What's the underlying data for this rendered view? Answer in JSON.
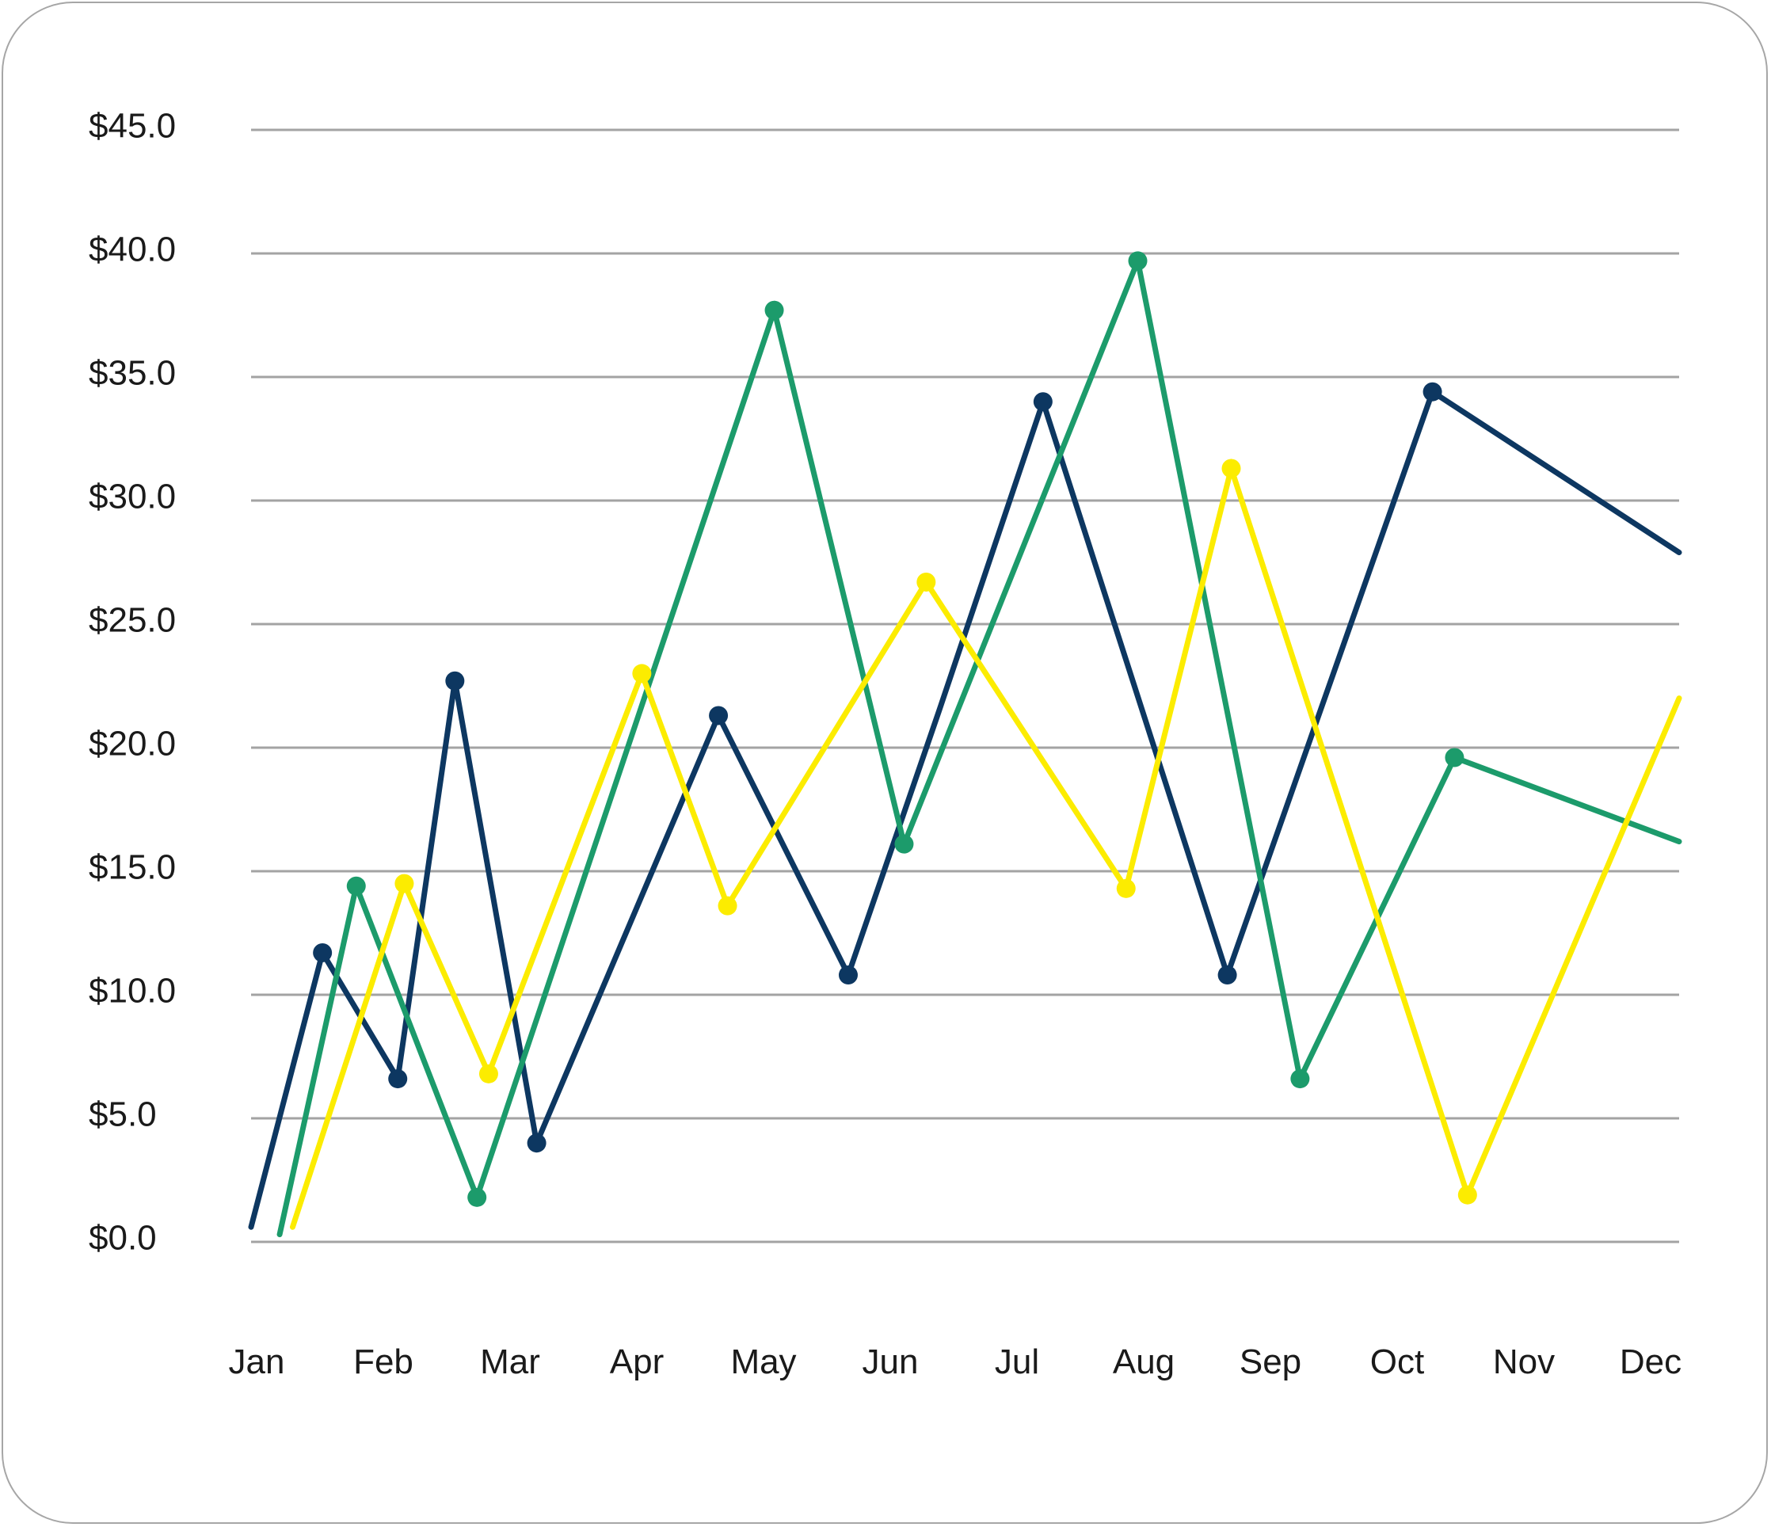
{
  "chart_data": {
    "type": "line",
    "title": "",
    "xlabel": "",
    "ylabel": "",
    "ylim": [
      0,
      45
    ],
    "grid": "horizontal",
    "legend": "none",
    "x_tick_labels": [
      "Jan",
      "Feb",
      "Mar",
      "Apr",
      "May",
      "Jun",
      "Jul",
      "Aug",
      "Sep",
      "Oct",
      "Nov",
      "Dec"
    ],
    "y_tick_labels": [
      "$0.0",
      "$5.0",
      "$10.0",
      "$15.0",
      "$20.0",
      "$25.0",
      "$30.0",
      "$35.0",
      "$40.0",
      "$45.0"
    ],
    "y_ticks": [
      0,
      5,
      10,
      15,
      20,
      25,
      30,
      35,
      40,
      45
    ],
    "x_range": [
      0,
      11
    ],
    "series": [
      {
        "color": "#0d3761",
        "points": [
          {
            "x": 0.0,
            "y": 0.6,
            "marker": false
          },
          {
            "x": 0.55,
            "y": 11.7,
            "marker": true
          },
          {
            "x": 1.13,
            "y": 6.6,
            "marker": true
          },
          {
            "x": 1.57,
            "y": 22.7,
            "marker": true
          },
          {
            "x": 2.2,
            "y": 4.0,
            "marker": true
          },
          {
            "x": 3.6,
            "y": 21.3,
            "marker": true
          },
          {
            "x": 4.6,
            "y": 10.8,
            "marker": true
          },
          {
            "x": 5.3,
            "y": 21.5,
            "marker": false
          },
          {
            "x": 6.1,
            "y": 34.0,
            "marker": true
          },
          {
            "x": 7.52,
            "y": 10.8,
            "marker": true
          },
          {
            "x": 9.1,
            "y": 34.4,
            "marker": true
          },
          {
            "x": 11.0,
            "y": 27.9,
            "marker": false
          }
        ]
      },
      {
        "color": "#1c9b6b",
        "points": [
          {
            "x": 0.22,
            "y": 0.3,
            "marker": false
          },
          {
            "x": 0.81,
            "y": 14.4,
            "marker": true
          },
          {
            "x": 1.74,
            "y": 1.8,
            "marker": true
          },
          {
            "x": 4.03,
            "y": 37.7,
            "marker": true
          },
          {
            "x": 5.03,
            "y": 16.1,
            "marker": true
          },
          {
            "x": 6.83,
            "y": 39.7,
            "marker": true
          },
          {
            "x": 8.08,
            "y": 6.6,
            "marker": true
          },
          {
            "x": 9.27,
            "y": 19.6,
            "marker": true
          },
          {
            "x": 11.0,
            "y": 16.2,
            "marker": false
          }
        ]
      },
      {
        "color": "#fcec00",
        "points": [
          {
            "x": 0.32,
            "y": 0.6,
            "marker": false
          },
          {
            "x": 1.18,
            "y": 14.5,
            "marker": true
          },
          {
            "x": 1.83,
            "y": 6.8,
            "marker": true
          },
          {
            "x": 3.01,
            "y": 23.0,
            "marker": true
          },
          {
            "x": 3.67,
            "y": 13.6,
            "marker": true
          },
          {
            "x": 5.2,
            "y": 26.7,
            "marker": true
          },
          {
            "x": 6.74,
            "y": 14.3,
            "marker": true
          },
          {
            "x": 7.55,
            "y": 31.3,
            "marker": true
          },
          {
            "x": 9.37,
            "y": 1.9,
            "marker": true
          },
          {
            "x": 11.0,
            "y": 22.0,
            "marker": false
          }
        ]
      }
    ]
  }
}
